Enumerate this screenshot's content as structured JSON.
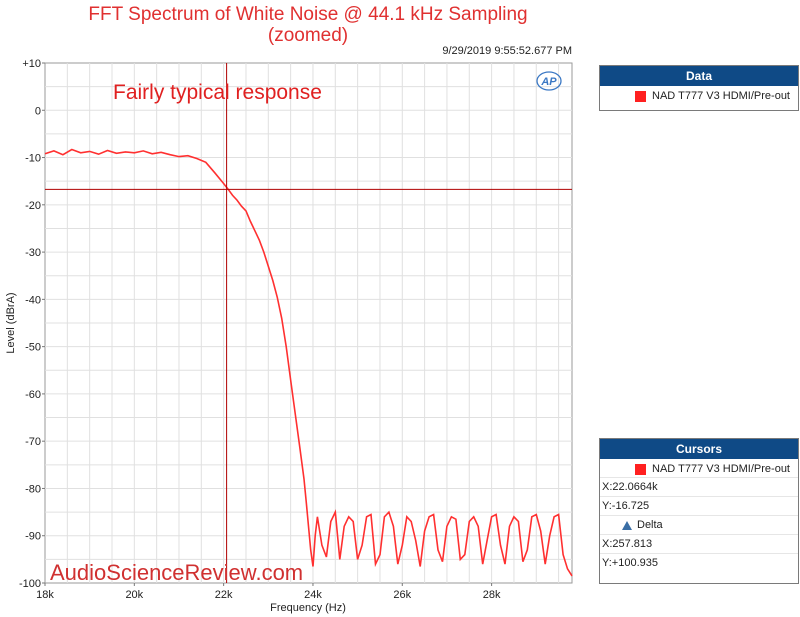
{
  "title_line1": "FFT Spectrum of White Noise @ 44.1 kHz Sampling",
  "title_line2": "(zoomed)",
  "timestamp": "9/29/2019 9:55:52.677 PM",
  "annotation": "Fairly typical response",
  "watermark": "AudioScienceReview.com",
  "logo_text": "AP",
  "colors": {
    "trace": "#ff3030",
    "cursor": "#b00000",
    "panel_header": "#0f4a86",
    "grid": "#e0e0e0"
  },
  "data_panel": {
    "title": "Data",
    "entry": "NAD T777 V3 HDMI/Pre-out"
  },
  "cursors_panel": {
    "title": "Cursors",
    "entry": "NAD T777 V3 HDMI/Pre-out",
    "x_value": "X:22.0664k",
    "y_value": "Y:-16.725",
    "delta_label": "Delta",
    "delta_x": "X:257.813",
    "delta_y": "Y:+100.935"
  },
  "chart_data": {
    "type": "line",
    "xlabel": "Frequency (Hz)",
    "ylabel": "Level (dBrA)",
    "xlim": [
      18000,
      29800
    ],
    "ylim": [
      -100,
      10
    ],
    "x_ticks": [
      18000,
      20000,
      22000,
      24000,
      26000,
      28000
    ],
    "x_tick_labels": [
      "18k",
      "20k",
      "22k",
      "24k",
      "26k",
      "28k"
    ],
    "y_ticks": [
      10,
      0,
      -10,
      -20,
      -30,
      -40,
      -50,
      -60,
      -70,
      -80,
      -90,
      -100
    ],
    "y_tick_labels": [
      "+10",
      "0",
      "-10",
      "-20",
      "-30",
      "-40",
      "-50",
      "-60",
      "-70",
      "-80",
      "-90",
      "-100"
    ],
    "grid": true,
    "cursor": {
      "x": 22066.4,
      "y": -16.725
    },
    "series": [
      {
        "name": "NAD T777 V3 HDMI/Pre-out",
        "x": [
          18000,
          18200,
          18400,
          18600,
          18800,
          19000,
          19200,
          19400,
          19600,
          19800,
          20000,
          20200,
          20400,
          20600,
          20800,
          21000,
          21200,
          21400,
          21600,
          21800,
          22000,
          22100,
          22200,
          22300,
          22400,
          22500,
          22600,
          22700,
          22800,
          22900,
          23000,
          23100,
          23200,
          23300,
          23400,
          23500,
          23600,
          23700,
          23800,
          23850,
          23900,
          23950,
          24000,
          24050,
          24100,
          24200,
          24300,
          24400,
          24500,
          24600,
          24700,
          24800,
          24900,
          25000,
          25100,
          25200,
          25300,
          25400,
          25500,
          25600,
          25700,
          25800,
          25900,
          26000,
          26100,
          26200,
          26300,
          26400,
          26500,
          26600,
          26700,
          26800,
          26900,
          27000,
          27100,
          27200,
          27300,
          27400,
          27500,
          27600,
          27700,
          27800,
          27900,
          28000,
          28100,
          28200,
          28300,
          28400,
          28500,
          28600,
          28700,
          28800,
          28900,
          29000,
          29100,
          29200,
          29300,
          29400,
          29500,
          29600,
          29700,
          29800
        ],
        "y": [
          -9.2,
          -8.6,
          -9.4,
          -8.3,
          -9.0,
          -8.7,
          -9.3,
          -8.5,
          -9.1,
          -8.8,
          -9.0,
          -8.6,
          -9.2,
          -8.9,
          -9.4,
          -9.8,
          -9.6,
          -10.2,
          -11.0,
          -13.2,
          -15.5,
          -16.7,
          -18.0,
          -19.0,
          -20.3,
          -21.3,
          -23.5,
          -25.5,
          -27.5,
          -30.0,
          -33.0,
          -36.0,
          -39.5,
          -44.0,
          -50.0,
          -57.0,
          -64.0,
          -71.0,
          -78.0,
          -83.0,
          -88.0,
          -93.0,
          -96.5,
          -90.0,
          -86.0,
          -92.0,
          -94.5,
          -87.0,
          -85.0,
          -95.0,
          -88.0,
          -86.0,
          -87.0,
          -95.0,
          -92.0,
          -86.0,
          -85.5,
          -96.0,
          -94.0,
          -86.0,
          -85.0,
          -88.0,
          -96.0,
          -92.0,
          -86.0,
          -87.0,
          -91.0,
          -96.5,
          -89.0,
          -86.0,
          -85.5,
          -93.0,
          -95.5,
          -88.0,
          -86.0,
          -86.5,
          -95.0,
          -94.0,
          -87.0,
          -86.0,
          -88.0,
          -96.0,
          -91.0,
          -86.0,
          -85.5,
          -92.0,
          -96.0,
          -88.0,
          -86.0,
          -87.0,
          -95.5,
          -93.0,
          -86.0,
          -85.5,
          -89.0,
          -96.0,
          -90.0,
          -86.0,
          -85.5,
          -94.0,
          -97.0,
          -98.5
        ]
      }
    ]
  }
}
